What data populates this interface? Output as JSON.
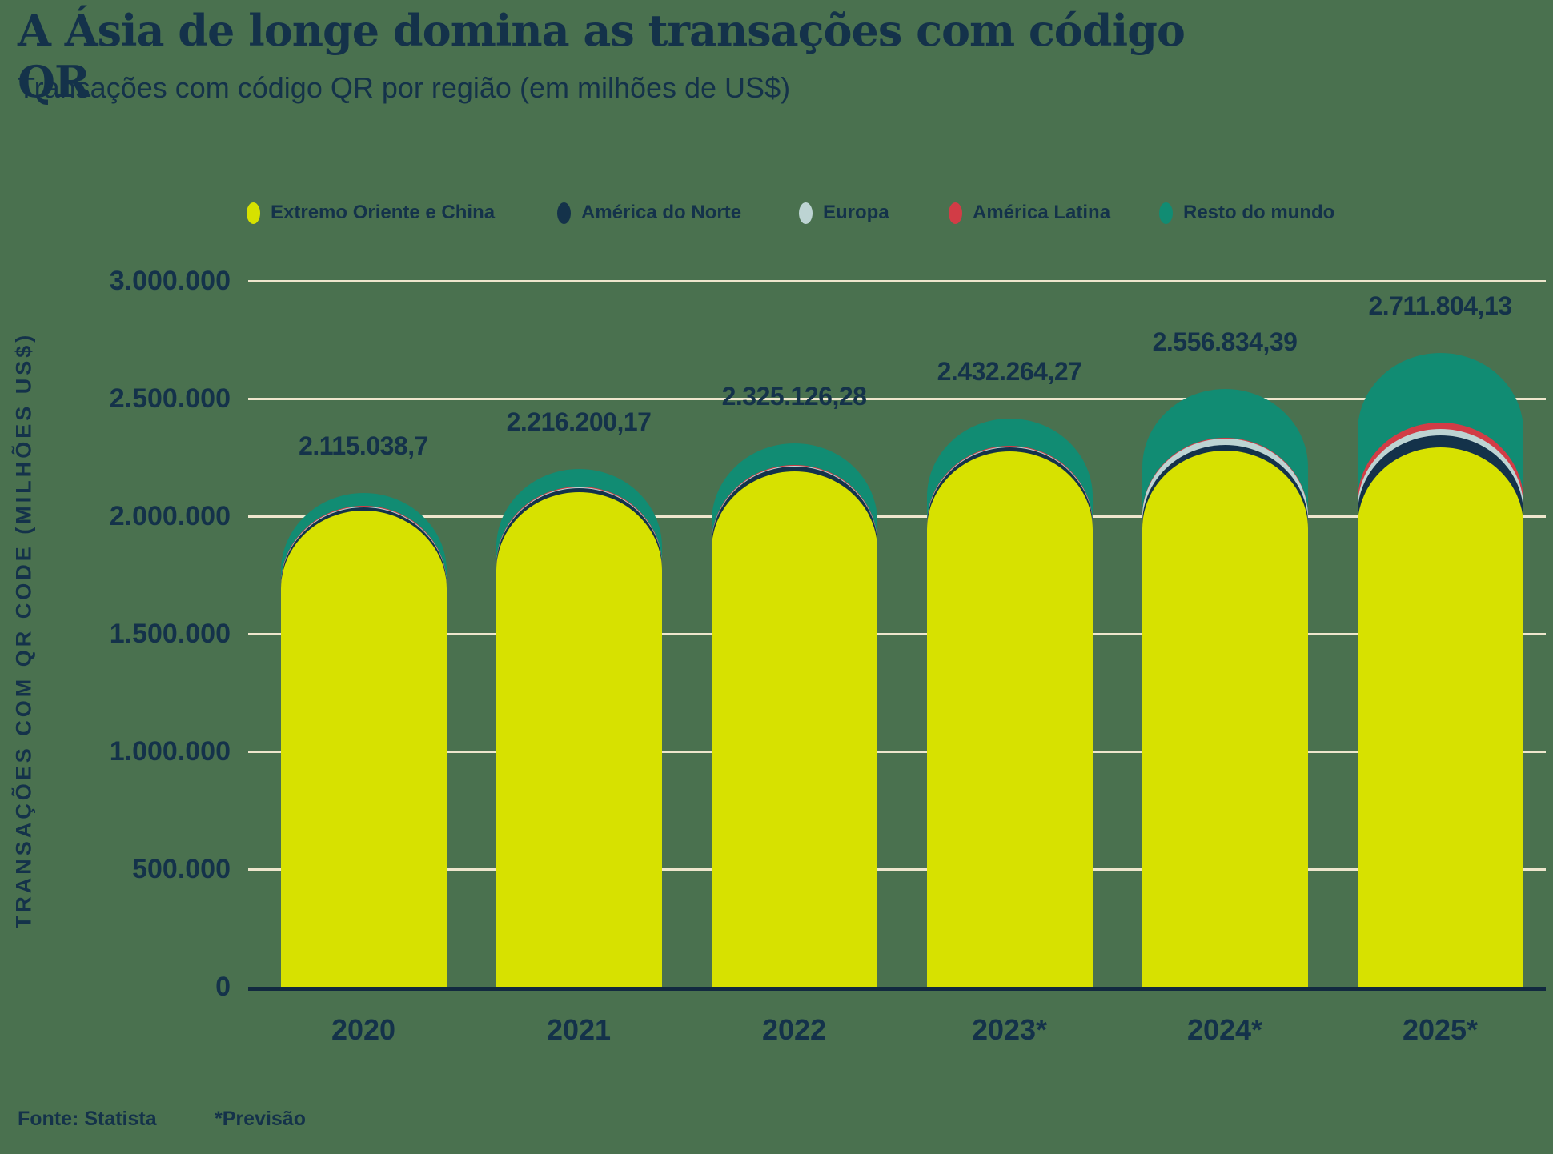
{
  "title": "A Ásia de longe domina as transações com código QR",
  "subtitle": "Transações com código QR por região (em milhões de US$)",
  "footer": {
    "source": "Fonte: Statista",
    "note": "*Previsão"
  },
  "chart_data": {
    "type": "bar",
    "stacked": true,
    "grid": true,
    "legend_position": "top",
    "ylabel": "TRANSAÇÕES COM QR CODE (MILHÕES US$)",
    "ylim": [
      0,
      3000000
    ],
    "y_ticks": [
      "3.000.000",
      "2.500.000",
      "2.000.000",
      "1.500.000",
      "1.000.000",
      "500.000",
      "0"
    ],
    "categories": [
      "2020",
      "2021",
      "2022",
      "2023*",
      "2024*",
      "2025*"
    ],
    "series": [
      {
        "name": "Extremo Oriente e China",
        "color": "#d7e100",
        "values": [
          2042038.7,
          2119200.17,
          2209126.28,
          2293264.27,
          2295834.39,
          2308804.13
        ]
      },
      {
        "name": "América do Norte",
        "color": "#14324a",
        "values": [
          14000,
          17000,
          20000,
          15000,
          24000,
          52000
        ]
      },
      {
        "name": "Europa",
        "color": "#bdd4d3",
        "values": [
          2000,
          2500,
          3500,
          4000,
          27000,
          27000
        ]
      },
      {
        "name": "América Latina",
        "color": "#d23c46",
        "values": [
          2000,
          2500,
          3500,
          4000,
          5000,
          27000
        ]
      },
      {
        "name": "Resto do mundo",
        "color": "#118c73",
        "values": [
          55000,
          75000,
          89000,
          116000,
          205000,
          297000
        ]
      }
    ],
    "totals": [
      2115038.7,
      2216200.17,
      2325126.28,
      2432264.27,
      2556834.39,
      2711804.13
    ],
    "totals_labels": [
      "2.115.038,7",
      "2.216.200,17",
      "2.325.126,28",
      "2.432.264,27",
      "2.556.834,39",
      "2.711.804,13"
    ]
  }
}
